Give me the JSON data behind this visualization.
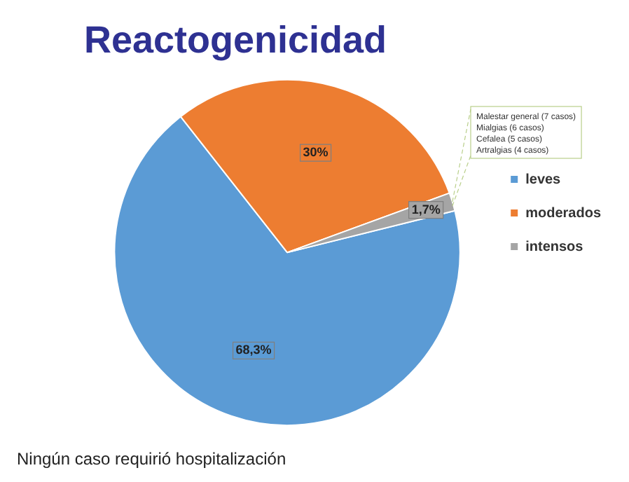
{
  "chart_data": {
    "type": "pie",
    "title": "Reactogenicidad",
    "categories": [
      "leves",
      "moderados",
      "intensos"
    ],
    "values": [
      68.3,
      30,
      1.7
    ],
    "colors": [
      "#5b9bd5",
      "#ed7d31",
      "#a5a5a5"
    ],
    "value_labels": [
      "68,3%",
      "30%",
      "1,7%"
    ],
    "legend": "right",
    "annotations": [
      "Malestar general (7 casos)",
      "Mialgias (6 casos)",
      "Cefalea (5 casos)",
      "Artralgias (4 casos)",
      "Ningún caso requirió hospitalización"
    ]
  }
}
